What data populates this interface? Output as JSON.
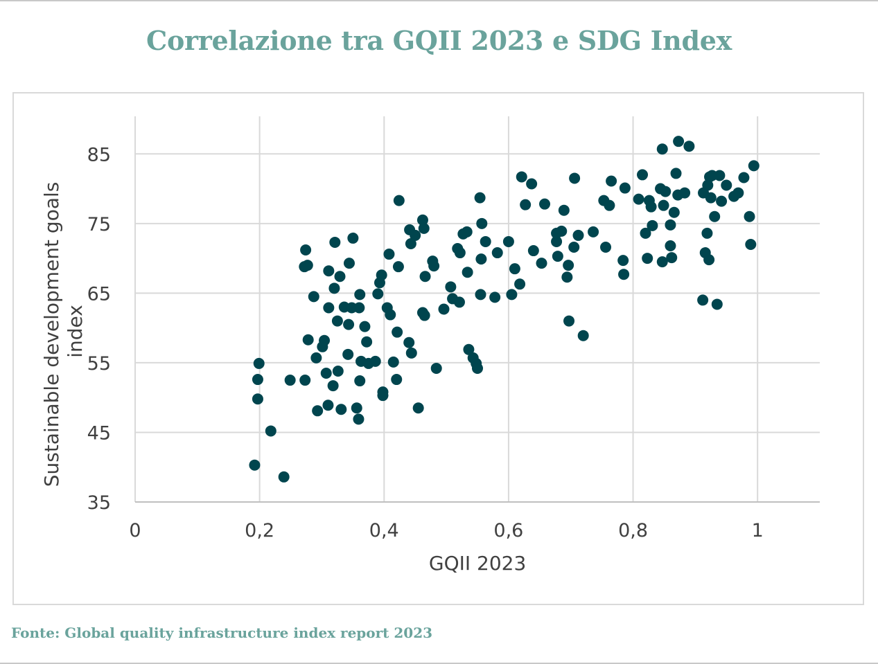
{
  "title": "Correlazione tra GQII 2023 e SDG Index",
  "source": "Fonte: Global quality infrastructure index report 2023",
  "colors": {
    "title": "#6aa39c",
    "point": "#00454e",
    "grid": "#d9d9d9",
    "text": "#404040"
  },
  "chart_data": {
    "type": "scatter",
    "xlabel": "GQII 2023",
    "ylabel_lines": [
      "Sustainable development goals",
      "index"
    ],
    "xlim": [
      0,
      1.1
    ],
    "ylim": [
      35,
      90
    ],
    "x_ticks": [
      0,
      0.2,
      0.4,
      0.6,
      0.8,
      1
    ],
    "x_tick_labels": [
      "0",
      "0,2",
      "0,4",
      "0,6",
      "0,8",
      "1"
    ],
    "y_ticks": [
      35,
      45,
      55,
      65,
      75,
      85
    ],
    "y_tick_labels": [
      "35",
      "45",
      "55",
      "65",
      "75",
      "85"
    ],
    "grid": "both",
    "legend": "none",
    "points": [
      [
        0.192,
        40.3
      ],
      [
        0.239,
        38.6
      ],
      [
        0.218,
        45.2
      ],
      [
        0.197,
        49.8
      ],
      [
        0.197,
        52.6
      ],
      [
        0.199,
        54.9
      ],
      [
        0.249,
        52.5
      ],
      [
        0.273,
        52.5
      ],
      [
        0.274,
        71.2
      ],
      [
        0.272,
        68.8
      ],
      [
        0.277,
        69.0
      ],
      [
        0.278,
        58.3
      ],
      [
        0.287,
        64.5
      ],
      [
        0.291,
        55.7
      ],
      [
        0.293,
        48.1
      ],
      [
        0.301,
        57.3
      ],
      [
        0.304,
        58.2
      ],
      [
        0.307,
        53.5
      ],
      [
        0.31,
        48.9
      ],
      [
        0.311,
        62.9
      ],
      [
        0.311,
        68.2
      ],
      [
        0.318,
        51.7
      ],
      [
        0.32,
        65.7
      ],
      [
        0.321,
        72.3
      ],
      [
        0.325,
        61.0
      ],
      [
        0.326,
        53.8
      ],
      [
        0.329,
        67.4
      ],
      [
        0.331,
        48.3
      ],
      [
        0.336,
        63.0
      ],
      [
        0.342,
        56.2
      ],
      [
        0.343,
        60.5
      ],
      [
        0.344,
        69.3
      ],
      [
        0.348,
        62.9
      ],
      [
        0.35,
        72.9
      ],
      [
        0.356,
        48.5
      ],
      [
        0.359,
        46.9
      ],
      [
        0.36,
        62.9
      ],
      [
        0.361,
        64.8
      ],
      [
        0.361,
        52.4
      ],
      [
        0.363,
        55.2
      ],
      [
        0.369,
        60.2
      ],
      [
        0.372,
        58.0
      ],
      [
        0.375,
        54.9
      ],
      [
        0.386,
        55.2
      ],
      [
        0.39,
        64.9
      ],
      [
        0.393,
        66.5
      ],
      [
        0.396,
        67.6
      ],
      [
        0.398,
        50.8
      ],
      [
        0.398,
        50.3
      ],
      [
        0.405,
        62.9
      ],
      [
        0.408,
        70.6
      ],
      [
        0.41,
        61.9
      ],
      [
        0.415,
        55.1
      ],
      [
        0.42,
        52.6
      ],
      [
        0.421,
        59.4
      ],
      [
        0.423,
        68.8
      ],
      [
        0.424,
        78.3
      ],
      [
        0.44,
        57.9
      ],
      [
        0.441,
        74.1
      ],
      [
        0.443,
        72.1
      ],
      [
        0.444,
        56.4
      ],
      [
        0.45,
        73.3
      ],
      [
        0.455,
        48.5
      ],
      [
        0.462,
        75.5
      ],
      [
        0.462,
        62.2
      ],
      [
        0.464,
        74.3
      ],
      [
        0.465,
        61.8
      ],
      [
        0.466,
        67.4
      ],
      [
        0.478,
        69.6
      ],
      [
        0.48,
        68.9
      ],
      [
        0.484,
        54.2
      ],
      [
        0.496,
        62.7
      ],
      [
        0.507,
        65.9
      ],
      [
        0.51,
        64.2
      ],
      [
        0.518,
        71.4
      ],
      [
        0.521,
        63.7
      ],
      [
        0.522,
        70.8
      ],
      [
        0.527,
        73.5
      ],
      [
        0.533,
        73.8
      ],
      [
        0.534,
        68.0
      ],
      [
        0.536,
        56.9
      ],
      [
        0.543,
        55.7
      ],
      [
        0.548,
        54.9
      ],
      [
        0.55,
        54.2
      ],
      [
        0.554,
        78.7
      ],
      [
        0.555,
        64.8
      ],
      [
        0.556,
        69.9
      ],
      [
        0.557,
        75.0
      ],
      [
        0.563,
        72.4
      ],
      [
        0.578,
        64.4
      ],
      [
        0.582,
        70.8
      ],
      [
        0.6,
        72.4
      ],
      [
        0.605,
        64.8
      ],
      [
        0.61,
        68.5
      ],
      [
        0.618,
        66.3
      ],
      [
        0.621,
        81.7
      ],
      [
        0.627,
        77.7
      ],
      [
        0.637,
        80.7
      ],
      [
        0.64,
        71.1
      ],
      [
        0.653,
        69.3
      ],
      [
        0.658,
        77.8
      ],
      [
        0.677,
        72.4
      ],
      [
        0.677,
        73.6
      ],
      [
        0.679,
        70.3
      ],
      [
        0.685,
        73.9
      ],
      [
        0.689,
        76.9
      ],
      [
        0.694,
        67.3
      ],
      [
        0.696,
        69.0
      ],
      [
        0.697,
        61.0
      ],
      [
        0.705,
        71.6
      ],
      [
        0.706,
        81.5
      ],
      [
        0.712,
        73.3
      ],
      [
        0.72,
        58.9
      ],
      [
        0.736,
        73.8
      ],
      [
        0.753,
        78.3
      ],
      [
        0.756,
        71.6
      ],
      [
        0.762,
        77.6
      ],
      [
        0.765,
        81.1
      ],
      [
        0.784,
        69.7
      ],
      [
        0.785,
        67.7
      ],
      [
        0.787,
        80.1
      ],
      [
        0.809,
        78.5
      ],
      [
        0.815,
        82.0
      ],
      [
        0.82,
        73.6
      ],
      [
        0.823,
        70.0
      ],
      [
        0.826,
        78.3
      ],
      [
        0.829,
        77.4
      ],
      [
        0.831,
        74.7
      ],
      [
        0.844,
        80.0
      ],
      [
        0.847,
        85.7
      ],
      [
        0.847,
        69.5
      ],
      [
        0.849,
        77.6
      ],
      [
        0.852,
        79.6
      ],
      [
        0.86,
        71.8
      ],
      [
        0.86,
        74.8
      ],
      [
        0.862,
        70.1
      ],
      [
        0.866,
        76.6
      ],
      [
        0.869,
        82.2
      ],
      [
        0.872,
        79.1
      ],
      [
        0.873,
        86.8
      ],
      [
        0.883,
        79.4
      ],
      [
        0.89,
        86.1
      ],
      [
        0.912,
        64.0
      ],
      [
        0.913,
        79.4
      ],
      [
        0.916,
        70.8
      ],
      [
        0.919,
        73.6
      ],
      [
        0.92,
        80.5
      ],
      [
        0.922,
        69.8
      ],
      [
        0.923,
        81.7
      ],
      [
        0.925,
        78.7
      ],
      [
        0.927,
        81.9
      ],
      [
        0.931,
        76.0
      ],
      [
        0.935,
        63.4
      ],
      [
        0.939,
        81.9
      ],
      [
        0.942,
        78.2
      ],
      [
        0.95,
        80.5
      ],
      [
        0.962,
        78.9
      ],
      [
        0.969,
        79.4
      ],
      [
        0.978,
        81.6
      ],
      [
        0.987,
        76.0
      ],
      [
        0.989,
        72.0
      ],
      [
        0.994,
        83.3
      ]
    ]
  }
}
